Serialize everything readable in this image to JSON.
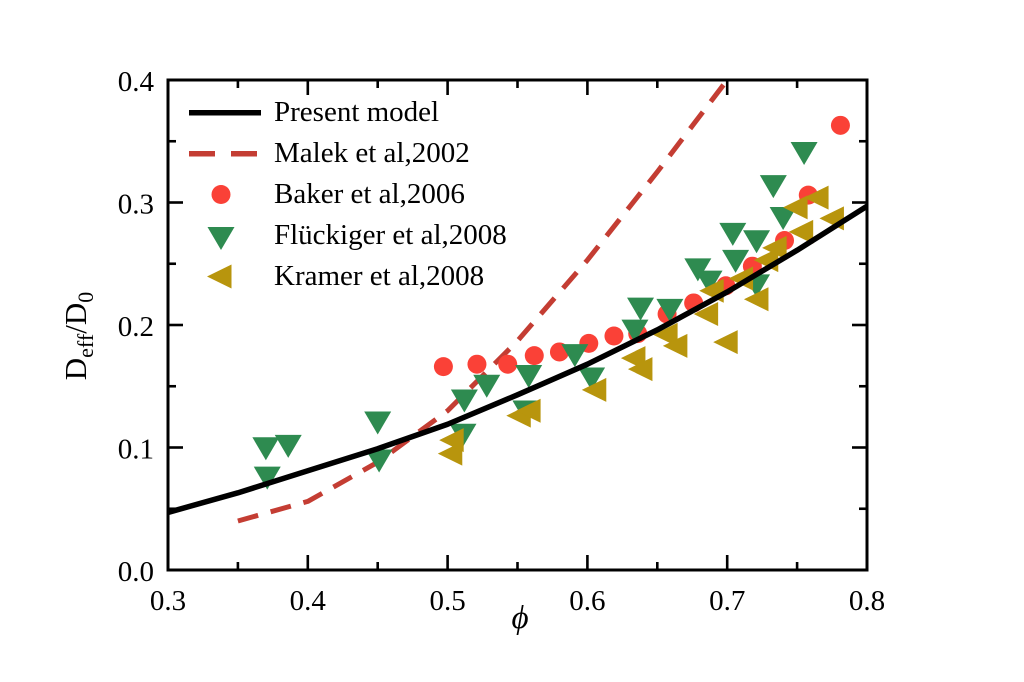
{
  "figure": {
    "background": "#ffffff"
  },
  "axes": {
    "x": {
      "label": "ϕ",
      "min": 0.3,
      "max": 0.8,
      "minor_step": 0.05,
      "major_ticks": [
        0.3,
        0.4,
        0.5,
        0.6,
        0.7,
        0.8
      ],
      "tick_labels": [
        "0.3",
        "0.4",
        "0.5",
        "0.6",
        "0.7",
        "0.8"
      ]
    },
    "y": {
      "label_base": "D",
      "label_sub": "eff",
      "label_base2": "/D",
      "label_sub2": "0",
      "min": 0.0,
      "max": 0.4,
      "minor_step": 0.05,
      "major_ticks": [
        0,
        0.1,
        0.2,
        0.3,
        0.4
      ],
      "tick_labels": [
        "0.0",
        "0.1",
        "0.2",
        "0.3",
        "0.4"
      ]
    }
  },
  "chart_data": {
    "type": "mixed",
    "xlim": [
      0.3,
      0.8
    ],
    "ylim": [
      0.0,
      0.4
    ],
    "grid": false,
    "legend_position": "top-left-inside",
    "series": [
      {
        "name": "Present model",
        "kind": "line",
        "color": "#000000",
        "x": [
          0.3,
          0.35,
          0.4,
          0.45,
          0.5,
          0.55,
          0.6,
          0.65,
          0.7,
          0.75,
          0.8
        ],
        "y": [
          0.047,
          0.063,
          0.081,
          0.099,
          0.119,
          0.143,
          0.168,
          0.196,
          0.227,
          0.261,
          0.297
        ]
      },
      {
        "name": "Malek et al,2002",
        "kind": "dashed-line",
        "color": "#C43D33",
        "x": [
          0.35,
          0.4,
          0.45,
          0.5,
          0.55,
          0.6,
          0.65,
          0.7
        ],
        "y": [
          0.04,
          0.056,
          0.088,
          0.13,
          0.187,
          0.253,
          0.325,
          0.4
        ]
      },
      {
        "name": "Baker et al,2006",
        "kind": "scatter",
        "marker": "circle",
        "color": "#FA4137",
        "x": [
          0.497,
          0.521,
          0.543,
          0.562,
          0.58,
          0.601,
          0.619,
          0.636,
          0.657,
          0.676,
          0.699,
          0.718,
          0.741,
          0.758,
          0.781
        ],
        "y": [
          0.166,
          0.168,
          0.168,
          0.175,
          0.178,
          0.185,
          0.191,
          0.193,
          0.209,
          0.218,
          0.232,
          0.248,
          0.269,
          0.306,
          0.363
        ]
      },
      {
        "name": "Flückiger et al,2008",
        "kind": "scatter",
        "marker": "triangle-down",
        "color": "#2E8B50",
        "x": [
          0.37,
          0.386,
          0.371,
          0.45,
          0.451,
          0.511,
          0.512,
          0.528,
          0.556,
          0.558,
          0.591,
          0.603,
          0.634,
          0.638,
          0.659,
          0.679,
          0.687,
          0.704,
          0.706,
          0.721,
          0.721,
          0.733,
          0.74,
          0.755
        ],
        "y": [
          0.101,
          0.103,
          0.077,
          0.122,
          0.091,
          0.112,
          0.14,
          0.152,
          0.131,
          0.16,
          0.177,
          0.158,
          0.197,
          0.215,
          0.214,
          0.247,
          0.237,
          0.276,
          0.254,
          0.27,
          0.234,
          0.315,
          0.289,
          0.342
        ]
      },
      {
        "name": "Kramer et al,2008",
        "kind": "scatter",
        "marker": "triangle-left",
        "color": "#B8950D",
        "x": [
          0.503,
          0.504,
          0.552,
          0.559,
          0.606,
          0.634,
          0.639,
          0.657,
          0.664,
          0.686,
          0.69,
          0.7,
          0.711,
          0.722,
          0.729,
          0.735,
          0.75,
          0.754,
          0.765,
          0.776
        ],
        "y": [
          0.095,
          0.106,
          0.126,
          0.13,
          0.147,
          0.173,
          0.164,
          0.192,
          0.183,
          0.209,
          0.228,
          0.186,
          0.238,
          0.221,
          0.253,
          0.263,
          0.296,
          0.276,
          0.304,
          0.287
        ]
      }
    ]
  }
}
